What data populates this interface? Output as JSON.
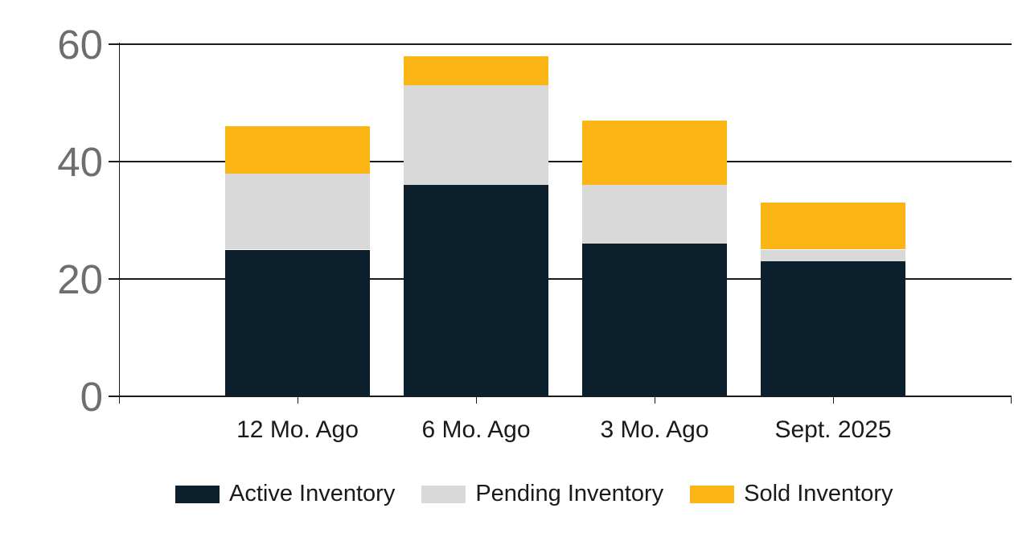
{
  "chart_data": {
    "type": "bar",
    "stacked": true,
    "title": "",
    "xlabel": "",
    "ylabel": "",
    "categories": [
      "12 Mo. Ago",
      "6 Mo. Ago",
      "3 Mo. Ago",
      "Sept. 2025"
    ],
    "series": [
      {
        "name": "Active Inventory",
        "color": "#0c1f2d",
        "values": [
          25,
          36,
          26,
          23
        ]
      },
      {
        "name": "Pending Inventory",
        "color": "#d9d9d9",
        "values": [
          13,
          17,
          10,
          2
        ]
      },
      {
        "name": "Sold Inventory",
        "color": "#fbb616",
        "values": [
          8,
          5,
          11,
          8
        ]
      }
    ],
    "stack_totals": [
      46,
      58,
      47,
      33
    ],
    "y_axis": {
      "min": 0,
      "max": 60,
      "ticks": [
        0,
        20,
        40,
        60
      ]
    },
    "grid": "horizontal",
    "legend_position": "bottom",
    "colors": {
      "background": "#ffffff",
      "axis_line": "#1a1a1a",
      "y_tick_label_text": "#6e6e6e",
      "x_tick_label_text": "#1a1a1a",
      "legend_text": "#1a1a1a"
    }
  }
}
